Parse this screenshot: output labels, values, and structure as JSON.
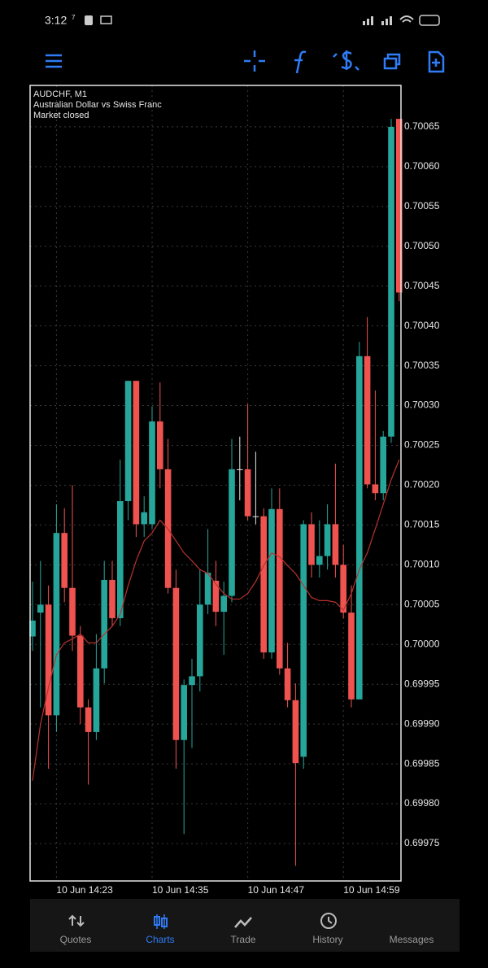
{
  "status_bar": {
    "time": "3:12",
    "speed": "7"
  },
  "chart_data": {
    "type": "candlestick",
    "title": "AUDCHF, M1",
    "subtitle": "Australian Dollar vs Swiss Franc",
    "status": "Market closed",
    "up_color": "#26a69a",
    "down_color": "#ef5350",
    "doji_color": "#e6e6e6",
    "grid": true,
    "categories": [
      null,
      null,
      null,
      "10 Jun 14:23",
      null,
      null,
      null,
      null,
      null,
      null,
      null,
      null,
      null,
      null,
      null,
      "10 Jun 14:35",
      null,
      null,
      null,
      null,
      null,
      null,
      null,
      null,
      null,
      null,
      null,
      "10 Jun 14:47",
      null,
      null,
      null,
      null,
      null,
      null,
      null,
      null,
      null,
      null,
      null,
      "10 Jun 14:59",
      null,
      null,
      null,
      null,
      null,
      null,
      null
    ],
    "candles": [
      [
        0.70001,
        0.700079,
        0.699992,
        0.70003
      ],
      [
        0.70004,
        0.700105,
        0.699921,
        0.70005
      ],
      [
        0.70005,
        0.700074,
        0.699844,
        0.699911
      ],
      [
        0.699911,
        0.700176,
        0.69989,
        0.70014
      ],
      [
        0.70014,
        0.700171,
        0.700053,
        0.700071
      ],
      [
        0.700071,
        0.7002,
        0.699992,
        0.700011
      ],
      [
        0.700011,
        0.700023,
        0.6999,
        0.699921
      ],
      [
        0.699921,
        0.699931,
        0.699824,
        0.69989
      ],
      [
        0.69989,
        0.700013,
        0.69988,
        0.69997
      ],
      [
        0.69997,
        0.700105,
        0.699951,
        0.700081
      ],
      [
        0.700081,
        0.700105,
        0.700023,
        0.700033
      ],
      [
        0.700033,
        0.700232,
        0.700023,
        0.70018
      ],
      [
        0.70018,
        0.700331,
        0.700156,
        0.700331
      ],
      [
        0.700331,
        0.700331,
        0.700135,
        0.700151
      ],
      [
        0.700151,
        0.700186,
        0.700135,
        0.700166
      ],
      [
        0.700151,
        0.700299,
        0.700145,
        0.70028
      ],
      [
        0.70028,
        0.700329,
        0.700196,
        0.70022
      ],
      [
        0.70022,
        0.700258,
        0.700064,
        0.700071
      ],
      [
        0.700071,
        0.700094,
        0.699844,
        0.69988
      ],
      [
        0.69988,
        0.699956,
        0.699762,
        0.699949
      ],
      [
        0.699949,
        0.699982,
        0.69987,
        0.69996
      ],
      [
        0.69996,
        0.700094,
        0.699941,
        0.70005
      ],
      [
        0.70005,
        0.700145,
        0.700038,
        0.70009
      ],
      [
        0.70008,
        0.700105,
        0.700023,
        0.700041
      ],
      [
        0.700041,
        0.700079,
        0.699987,
        0.700061
      ],
      [
        0.700061,
        0.700258,
        0.700053,
        0.70022
      ],
      [
        0.70022,
        0.700261,
        0.700181,
        0.70022
      ],
      [
        0.70022,
        0.700302,
        0.700156,
        0.700161
      ],
      [
        0.700161,
        0.700242,
        0.700151,
        0.700161
      ],
      [
        0.700161,
        0.700171,
        0.699982,
        0.69999
      ],
      [
        0.69999,
        0.700196,
        0.699982,
        0.70017
      ],
      [
        0.70017,
        0.700196,
        0.699962,
        0.69997
      ],
      [
        0.69997,
        0.700002,
        0.699921,
        0.69993
      ],
      [
        0.69993,
        0.699951,
        0.699722,
        0.699851
      ],
      [
        0.699859,
        0.700156,
        0.699844,
        0.700151
      ],
      [
        0.700151,
        0.700166,
        0.700084,
        0.7001
      ],
      [
        0.7001,
        0.700156,
        0.700084,
        0.700111
      ],
      [
        0.700111,
        0.700176,
        0.700094,
        0.700151
      ],
      [
        0.700151,
        0.700227,
        0.700084,
        0.7001
      ],
      [
        0.7001,
        0.700125,
        0.700033,
        0.70004
      ],
      [
        0.70004,
        0.700074,
        0.699921,
        0.699931
      ],
      [
        0.699931,
        0.70038,
        0.699931,
        0.700362
      ],
      [
        0.700362,
        0.700411,
        0.700196,
        0.700201
      ],
      [
        0.700201,
        0.700319,
        0.700181,
        0.70019
      ],
      [
        0.70019,
        0.700268,
        0.700181,
        0.700261
      ],
      [
        0.700261,
        0.70066,
        0.700253,
        0.70065
      ],
      [
        0.70066,
        0.70066,
        0.700431,
        0.700442
      ]
    ],
    "moving_average": {
      "color": "#b8332e",
      "values": [
        0.699829,
        0.6999,
        0.699946,
        0.699987,
        0.700002,
        0.700007,
        0.700013,
        0.700002,
        0.700002,
        0.700013,
        0.700023,
        0.700038,
        0.700074,
        0.700105,
        0.70013,
        0.70014,
        0.700156,
        0.700145,
        0.70013,
        0.700115,
        0.700105,
        0.700094,
        0.700089,
        0.700076,
        0.700064,
        0.700057,
        0.700057,
        0.700064,
        0.700079,
        0.700099,
        0.700115,
        0.70011,
        0.700099,
        0.700089,
        0.700074,
        0.700059,
        0.700055,
        0.700055,
        0.700053,
        0.700043,
        0.700064,
        0.700094,
        0.700115,
        0.700145,
        0.700176,
        0.700207,
        0.700232
      ]
    },
    "ylim": [
      0.699703,
      0.700702
    ],
    "yticks": [
      0.70065,
      {
        "value": 0.7006,
        "label": "0.70060"
      },
      0.70055,
      {
        "value": 0.7005,
        "label": "0.70050"
      },
      0.70045,
      {
        "value": 0.7004,
        "label": "0.70040"
      },
      0.70035,
      {
        "value": 0.7003,
        "label": "0.70030"
      },
      0.70025,
      {
        "value": 0.7002,
        "label": "0.70020"
      },
      0.70015,
      {
        "value": 0.7001,
        "label": "0.70010"
      },
      0.70005,
      {
        "value": 0.7,
        "label": "0.70000"
      },
      0.69995,
      {
        "value": 0.6999,
        "label": "0.69990"
      },
      0.69985,
      {
        "value": 0.6998,
        "label": "0.69980"
      },
      0.69975
    ]
  },
  "nav": [
    "Quotes",
    "Charts",
    "Trade",
    "History",
    "Messages"
  ]
}
